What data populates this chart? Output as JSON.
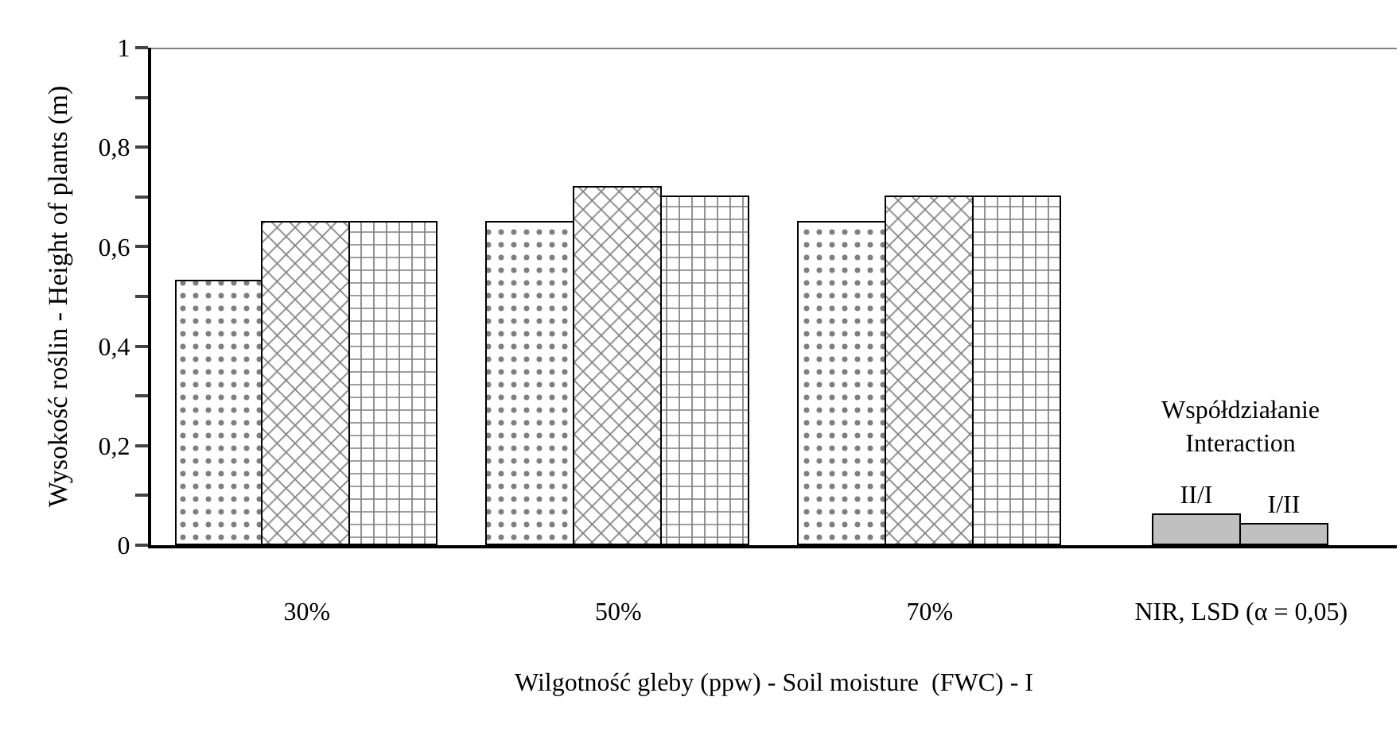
{
  "chart_data": {
    "type": "bar",
    "xlabel": "Wilgotność gleby (ppw) - Soil moisture  (FWC) - I",
    "ylabel": "Wysokość roślin - Height of plants (m)",
    "categories": [
      "30%",
      "50%",
      "70%",
      "NIR, LSD (α = 0,05)"
    ],
    "series": [
      {
        "color": "#000000",
        "values": [
          0.53,
          0.65,
          0.65,
          null
        ]
      },
      {
        "color": "#000000",
        "values": [
          0.65,
          0.72,
          0.7,
          null
        ]
      },
      {
        "color": "#000000",
        "values": [
          0.65,
          0.7,
          0.7,
          null
        ]
      },
      {
        "name": "II/I",
        "color": "#c0c0c0",
        "values": [
          null,
          null,
          null,
          0.06
        ]
      },
      {
        "name": "I/II",
        "color": "#c0c0c0",
        "values": [
          null,
          null,
          null,
          0.04
        ]
      }
    ],
    "annotations": [
      "Współdziałanie\nInteraction"
    ],
    "ylim": [
      0,
      1
    ],
    "yticks": [
      0,
      {
        "value": 0.1,
        "label": null
      },
      {
        "value": 0.2,
        "label": "0,2"
      },
      {
        "value": 0.3,
        "label": null
      },
      {
        "value": 0.4,
        "label": "0,4"
      },
      {
        "value": 0.5,
        "label": null
      },
      {
        "value": 0.6,
        "label": "0,6"
      },
      {
        "value": 0.7,
        "label": null
      },
      {
        "value": 0.8,
        "label": "0,8"
      },
      {
        "value": 0.9,
        "label": null
      },
      1
    ],
    "legend": false
  }
}
